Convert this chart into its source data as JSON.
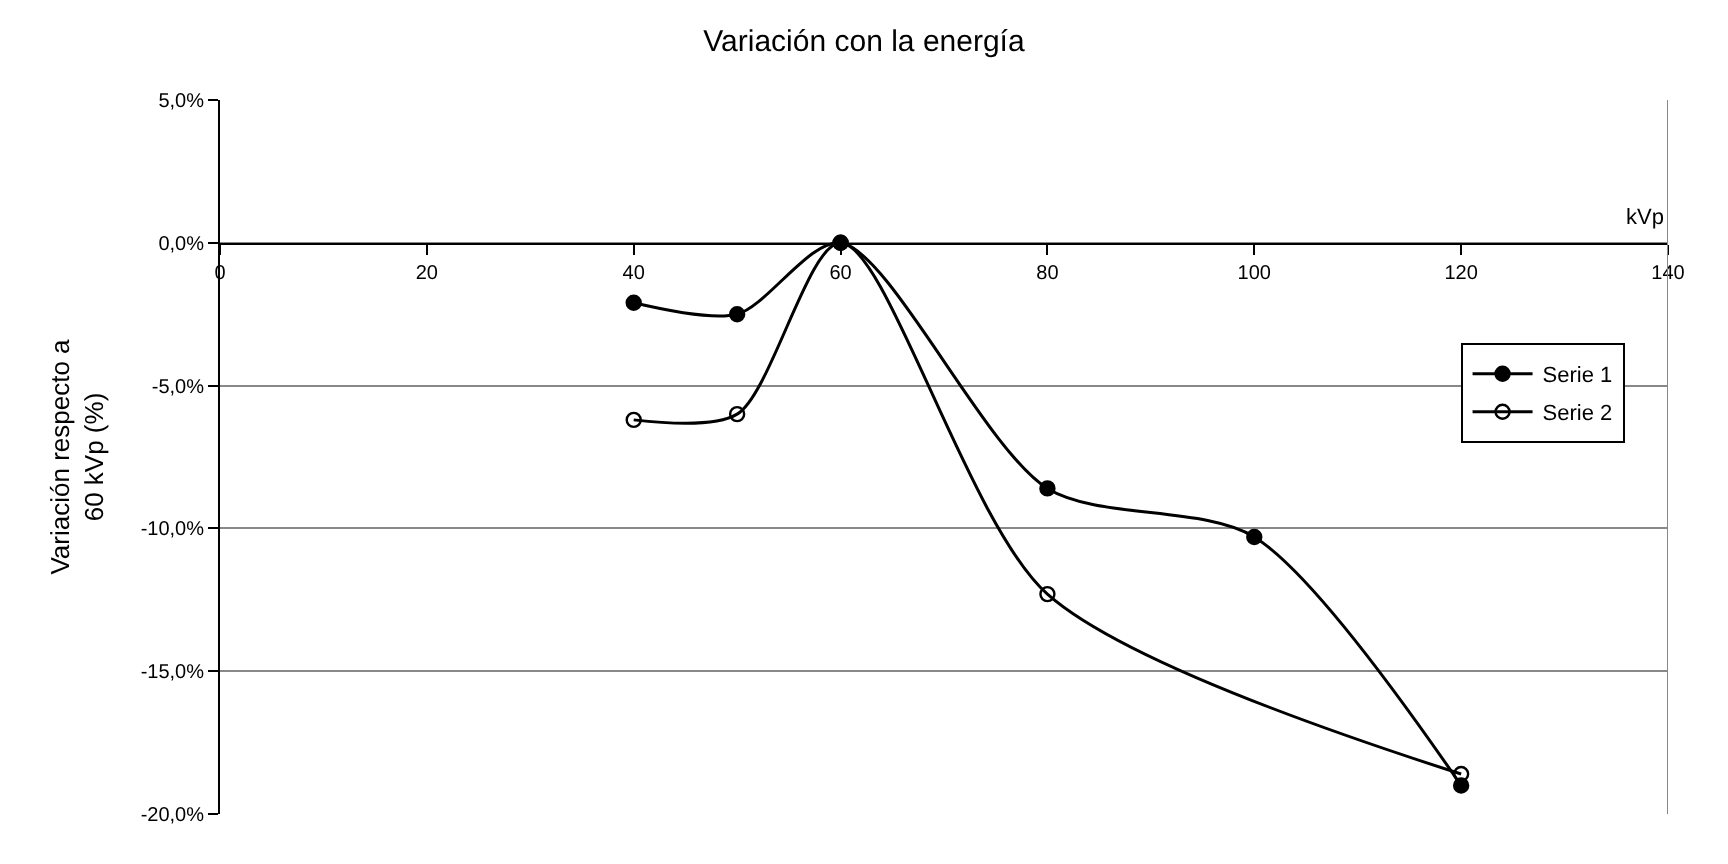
{
  "chart_data": {
    "type": "line",
    "title": "Variación con la energía",
    "xlabel": "kVp",
    "ylabel": "Variación respecto a 60 kVp (%)",
    "x": [
      40,
      50,
      60,
      80,
      100,
      120
    ],
    "series": [
      {
        "name": "Serie 1",
        "color": "#000000",
        "marker": "circle",
        "values": [
          -2.1,
          -2.5,
          0.0,
          -8.6,
          -10.3,
          -19.0
        ]
      },
      {
        "name": "Serie 2",
        "color": "#000000",
        "marker": "circle-open",
        "values": [
          -6.2,
          -6.0,
          0.0,
          -12.3,
          null,
          -18.6
        ]
      }
    ],
    "xlim": [
      0,
      140
    ],
    "xticks": [
      0,
      20,
      40,
      60,
      80,
      100,
      120,
      140
    ],
    "ylim": [
      -20,
      5
    ],
    "yticks": [
      {
        "value": -20,
        "label": "-20,0%"
      },
      {
        "value": -15,
        "label": "-15,0%"
      },
      {
        "value": -10,
        "label": "-10,0%"
      },
      {
        "value": -5,
        "label": "-5,0%"
      },
      {
        "value": 0,
        "label": "0,0%"
      },
      {
        "value": 5,
        "label": "5,0%"
      }
    ],
    "grid": "y",
    "legend": "right",
    "marker": "circle",
    "line_style": "solid"
  }
}
